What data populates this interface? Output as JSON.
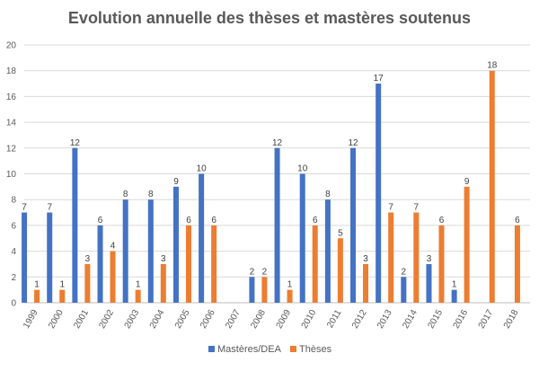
{
  "chart_data": {
    "type": "bar",
    "title": "Evolution annuelle des thèses et mastères soutenus",
    "xlabel": "",
    "ylabel": "",
    "ylim": [
      0,
      20
    ],
    "yticks": [
      0,
      2,
      4,
      6,
      8,
      10,
      12,
      14,
      16,
      18,
      20
    ],
    "grid": true,
    "legend_position": "bottom",
    "categories": [
      "1999",
      "2000",
      "2001",
      "2002",
      "2003",
      "2004",
      "2005",
      "2006",
      "2007",
      "2008",
      "2009",
      "2010",
      "2011",
      "2012",
      "2013",
      "2014",
      "2015",
      "2016",
      "2017",
      "2018"
    ],
    "series": [
      {
        "name": "Mastères/DEA",
        "color": "#4472C4",
        "values": [
          7,
          7,
          12,
          6,
          8,
          8,
          9,
          10,
          null,
          2,
          12,
          10,
          8,
          12,
          17,
          2,
          3,
          1,
          null,
          null
        ]
      },
      {
        "name": "Thèses",
        "color": "#ED7D31",
        "values": [
          1,
          1,
          3,
          4,
          1,
          3,
          6,
          6,
          null,
          2,
          1,
          6,
          5,
          3,
          7,
          7,
          6,
          9,
          18,
          6
        ]
      }
    ]
  }
}
